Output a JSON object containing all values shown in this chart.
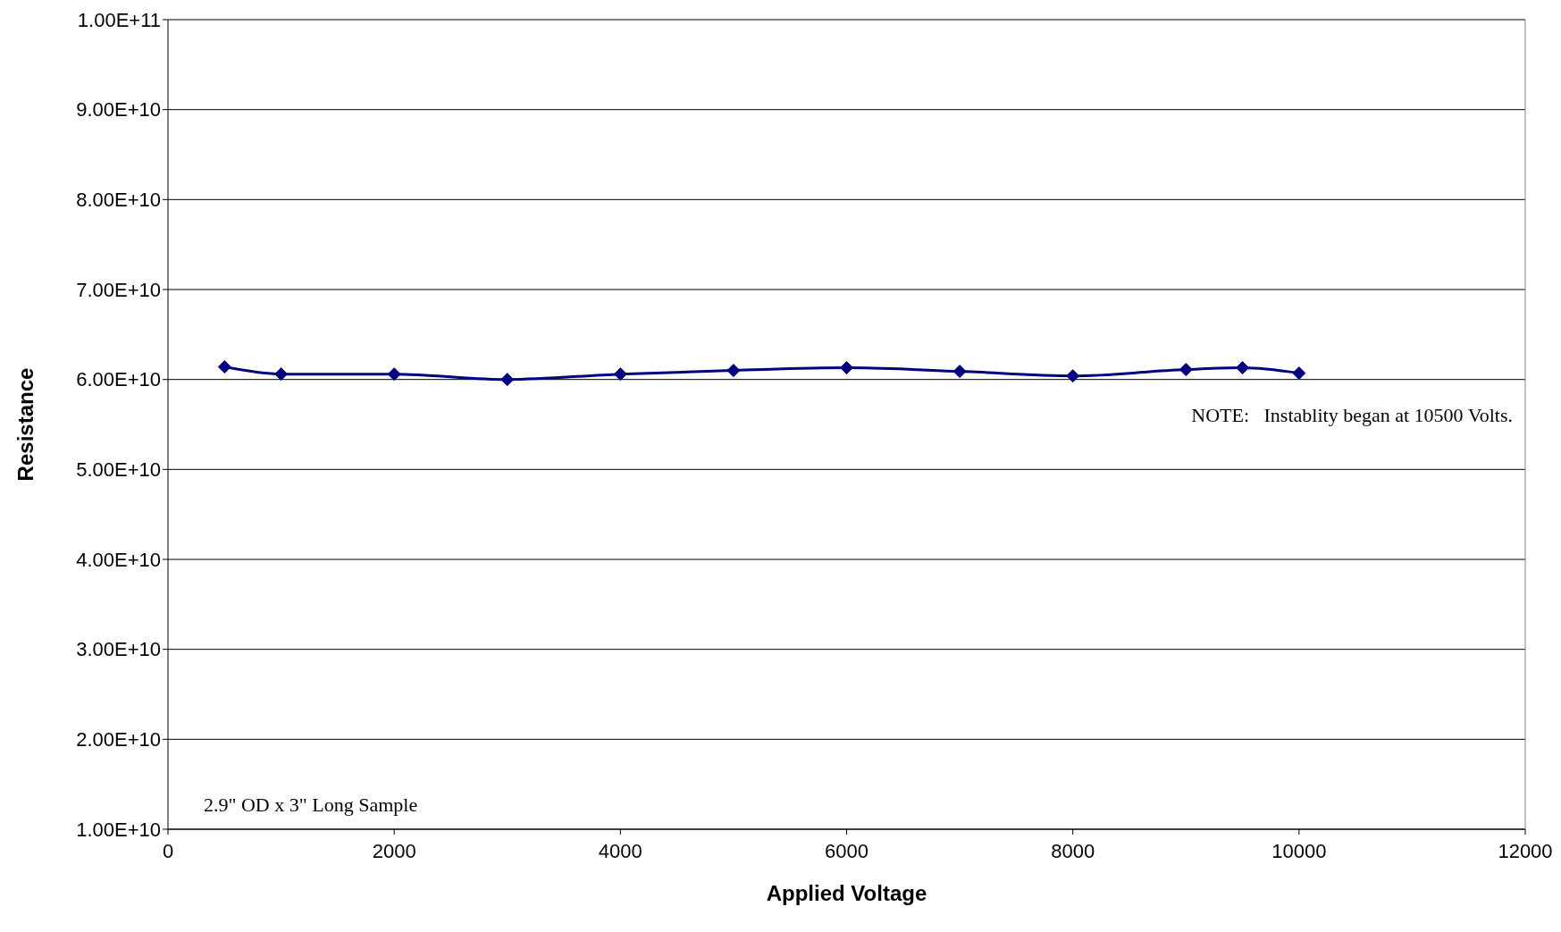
{
  "chart_data": {
    "type": "line",
    "xlabel": "Applied Voltage",
    "ylabel": "Resistance",
    "x": [
      500,
      1000,
      2000,
      3000,
      4000,
      5000,
      6000,
      7000,
      8000,
      9000,
      9500,
      10000
    ],
    "series": [
      {
        "color": "#000080",
        "values": [
          61400000000.0,
          60600000000.0,
          60600000000.0,
          60000000000.0,
          60600000000.0,
          61000000000.0,
          61300000000.0,
          60900000000.0,
          60400000000.0,
          61100000000.0,
          61300000000.0,
          60700000000.0
        ]
      }
    ],
    "xlim": [
      0,
      12000
    ],
    "xticks": [
      0,
      2000,
      4000,
      6000,
      8000,
      10000,
      12000
    ],
    "ylim": [
      10000000000.0,
      100000000000.0
    ],
    "yticks": [
      {
        "value": 10000000000.0,
        "label": "1.00E+10"
      },
      {
        "value": 20000000000.0,
        "label": "2.00E+10"
      },
      {
        "value": 30000000000.0,
        "label": "3.00E+10"
      },
      {
        "value": 40000000000.0,
        "label": "4.00E+10"
      },
      {
        "value": 50000000000.0,
        "label": "5.00E+10"
      },
      {
        "value": 60000000000.0,
        "label": "6.00E+10"
      },
      {
        "value": 70000000000.0,
        "label": "7.00E+10"
      },
      {
        "value": 80000000000.0,
        "label": "8.00E+10"
      },
      {
        "value": 90000000000.0,
        "label": "9.00E+10"
      },
      {
        "value": 100000000000.0,
        "label": "1.00E+11"
      }
    ],
    "grid": "y",
    "marker": "diamond",
    "legend": false,
    "annotations": [
      "NOTE:   Instablity began at 10500 Volts.",
      "2.9\" OD x 3\" Long Sample"
    ]
  }
}
